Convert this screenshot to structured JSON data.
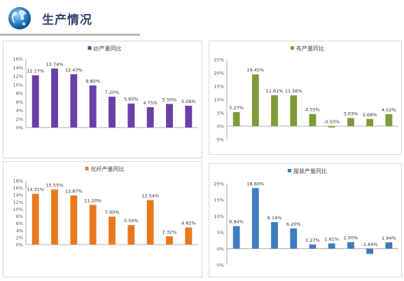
{
  "header": {
    "title": "生产情况",
    "logo_icon": "globe-icon"
  },
  "colors": {
    "title": "#2f3f6f",
    "rule": "#b8b8b8"
  },
  "chart_data": [
    {
      "type": "bar",
      "title": "纱产量同比",
      "color": "#6a3fa6",
      "ylim": [
        0,
        16
      ],
      "yticks": [
        "0%",
        "2%",
        "4%",
        "6%",
        "8%",
        "10%",
        "12%",
        "14%",
        "16%"
      ],
      "values": [
        12.17,
        13.74,
        12.43,
        9.8,
        7.2,
        5.6,
        4.75,
        5.5,
        5.08
      ],
      "labels": [
        "12.17%",
        "13.74%",
        "12.43%",
        "9.80%",
        "7.20%",
        "5.60%",
        "4.75%",
        "5.50%",
        "5.08%"
      ],
      "grid": false
    },
    {
      "type": "bar",
      "title": "布产量同比",
      "color": "#7e9a3a",
      "ylim": [
        -5,
        25
      ],
      "yticks": [
        "-5%",
        "0%",
        "5%",
        "10%",
        "15%",
        "20%",
        "25%"
      ],
      "values": [
        5.27,
        19.45,
        11.61,
        11.56,
        4.55,
        -0.5,
        3.03,
        2.68,
        4.52
      ],
      "labels": [
        "5.27%",
        "19.45%",
        "11.61%",
        "11.56%",
        "4.55%",
        "-0.50%",
        "3.03%",
        "2.68%",
        "4.52%"
      ],
      "grid": false
    },
    {
      "type": "bar",
      "title": "化纤产量同比",
      "color": "#e8791e",
      "ylim": [
        0,
        18
      ],
      "yticks": [
        "0%",
        "2%",
        "4%",
        "6%",
        "8%",
        "10%",
        "12%",
        "14%",
        "16%",
        "18%"
      ],
      "values": [
        14.31,
        15.55,
        13.87,
        11.2,
        7.9,
        5.5,
        12.54,
        2.32,
        4.82
      ],
      "labels": [
        "14.31%",
        "15.55%",
        "13.87%",
        "11.20%",
        "7.90%",
        "5.50%",
        "12.54%",
        "2.32%",
        "4.82%"
      ],
      "grid": false
    },
    {
      "type": "bar",
      "title": "服装产量同比",
      "color": "#3f7cc0",
      "ylim": [
        -5,
        20
      ],
      "yticks": [
        "-5%",
        "0%",
        "5%",
        "10%",
        "15%",
        "20%"
      ],
      "values": [
        6.94,
        18.6,
        8.14,
        6.2,
        1.27,
        1.61,
        2.0,
        -1.64,
        1.94
      ],
      "labels": [
        "6.94%",
        "18.60%",
        "8.14%",
        "6.20%",
        "1.27%",
        "1.61%",
        "2.00%",
        "-1.64%",
        "1.94%"
      ],
      "grid": false
    }
  ]
}
